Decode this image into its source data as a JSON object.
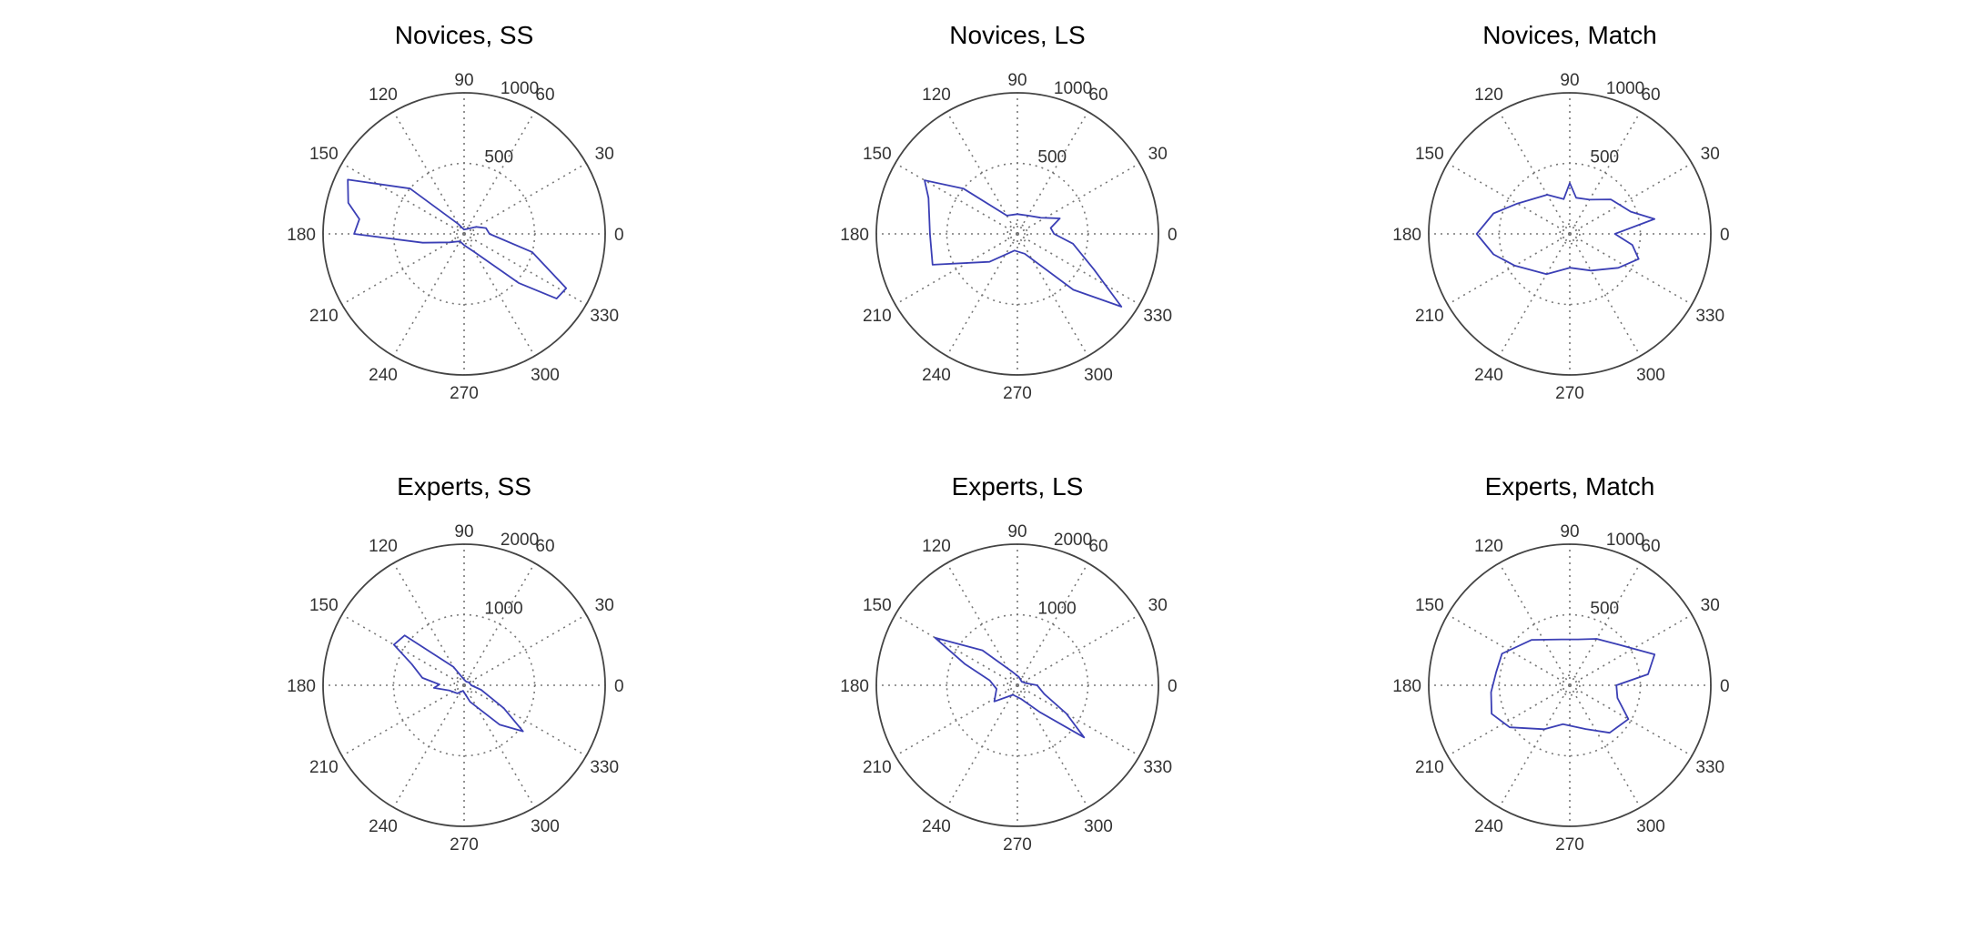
{
  "chart_data": [
    {
      "type": "polar",
      "title": "Novices, SS",
      "rmax": 1000,
      "r_ticks": [
        {
          "value": 500,
          "label": "500"
        },
        {
          "value": 1000,
          "label": "1000"
        }
      ],
      "angle_ticks": [
        "0",
        "30",
        "60",
        "90",
        "120",
        "150",
        "180",
        "210",
        "240",
        "270",
        "300",
        "330"
      ],
      "grid": true,
      "series_color": "#3b3fb5",
      "points": [
        {
          "theta": 0,
          "r": 180
        },
        {
          "theta": 15,
          "r": 160
        },
        {
          "theta": 30,
          "r": 100
        },
        {
          "theta": 60,
          "r": 40
        },
        {
          "theta": 90,
          "r": 30
        },
        {
          "theta": 120,
          "r": 80
        },
        {
          "theta": 140,
          "r": 500
        },
        {
          "theta": 155,
          "r": 910
        },
        {
          "theta": 165,
          "r": 850
        },
        {
          "theta": 172,
          "r": 750
        },
        {
          "theta": 180,
          "r": 780
        },
        {
          "theta": 192,
          "r": 300
        },
        {
          "theta": 210,
          "r": 120
        },
        {
          "theta": 240,
          "r": 60
        },
        {
          "theta": 270,
          "r": 80
        },
        {
          "theta": 300,
          "r": 150
        },
        {
          "theta": 318,
          "r": 520
        },
        {
          "theta": 325,
          "r": 800
        },
        {
          "theta": 332,
          "r": 820
        },
        {
          "theta": 345,
          "r": 500
        }
      ]
    },
    {
      "type": "polar",
      "title": "Novices, LS",
      "rmax": 1000,
      "r_ticks": [
        {
          "value": 500,
          "label": "500"
        },
        {
          "value": 1000,
          "label": "1000"
        }
      ],
      "angle_ticks": [
        "0",
        "30",
        "60",
        "90",
        "120",
        "150",
        "180",
        "210",
        "240",
        "270",
        "300",
        "330"
      ],
      "grid": true,
      "series_color": "#3b3fb5",
      "points": [
        {
          "theta": 0,
          "r": 260
        },
        {
          "theta": 10,
          "r": 240
        },
        {
          "theta": 20,
          "r": 320
        },
        {
          "theta": 35,
          "r": 200
        },
        {
          "theta": 60,
          "r": 150
        },
        {
          "theta": 90,
          "r": 140
        },
        {
          "theta": 120,
          "r": 150
        },
        {
          "theta": 140,
          "r": 500
        },
        {
          "theta": 150,
          "r": 760
        },
        {
          "theta": 158,
          "r": 680
        },
        {
          "theta": 180,
          "r": 620
        },
        {
          "theta": 200,
          "r": 640
        },
        {
          "theta": 225,
          "r": 280
        },
        {
          "theta": 260,
          "r": 120
        },
        {
          "theta": 290,
          "r": 150
        },
        {
          "theta": 315,
          "r": 560
        },
        {
          "theta": 325,
          "r": 900
        },
        {
          "theta": 335,
          "r": 600
        },
        {
          "theta": 350,
          "r": 400
        }
      ]
    },
    {
      "type": "polar",
      "title": "Novices, Match",
      "rmax": 1000,
      "r_ticks": [
        {
          "value": 500,
          "label": "500"
        },
        {
          "value": 1000,
          "label": "1000"
        }
      ],
      "angle_ticks": [
        "0",
        "30",
        "60",
        "90",
        "120",
        "150",
        "180",
        "210",
        "240",
        "270",
        "300",
        "330"
      ],
      "grid": true,
      "series_color": "#3b3fb5",
      "points": [
        {
          "theta": 0,
          "r": 320
        },
        {
          "theta": 10,
          "r": 610
        },
        {
          "theta": 20,
          "r": 460
        },
        {
          "theta": 40,
          "r": 380
        },
        {
          "theta": 60,
          "r": 280
        },
        {
          "theta": 80,
          "r": 260
        },
        {
          "theta": 90,
          "r": 360
        },
        {
          "theta": 100,
          "r": 250
        },
        {
          "theta": 120,
          "r": 320
        },
        {
          "theta": 150,
          "r": 430
        },
        {
          "theta": 165,
          "r": 560
        },
        {
          "theta": 180,
          "r": 660
        },
        {
          "theta": 195,
          "r": 560
        },
        {
          "theta": 210,
          "r": 450
        },
        {
          "theta": 240,
          "r": 330
        },
        {
          "theta": 270,
          "r": 240
        },
        {
          "theta": 300,
          "r": 300
        },
        {
          "theta": 325,
          "r": 420
        },
        {
          "theta": 340,
          "r": 520
        },
        {
          "theta": 350,
          "r": 450
        }
      ]
    },
    {
      "type": "polar",
      "title": "Experts, SS",
      "rmax": 2000,
      "r_ticks": [
        {
          "value": 1000,
          "label": "1000"
        },
        {
          "value": 2000,
          "label": "2000"
        }
      ],
      "angle_ticks": [
        "0",
        "30",
        "60",
        "90",
        "120",
        "150",
        "180",
        "210",
        "240",
        "270",
        "300",
        "330"
      ],
      "grid": true,
      "series_color": "#3b3fb5",
      "points": [
        {
          "theta": 0,
          "r": 100
        },
        {
          "theta": 30,
          "r": 80
        },
        {
          "theta": 60,
          "r": 60
        },
        {
          "theta": 90,
          "r": 80
        },
        {
          "theta": 120,
          "r": 300
        },
        {
          "theta": 140,
          "r": 1100
        },
        {
          "theta": 150,
          "r": 1150
        },
        {
          "theta": 158,
          "r": 800
        },
        {
          "theta": 170,
          "r": 600
        },
        {
          "theta": 178,
          "r": 350
        },
        {
          "theta": 185,
          "r": 430
        },
        {
          "theta": 200,
          "r": 220
        },
        {
          "theta": 230,
          "r": 150
        },
        {
          "theta": 260,
          "r": 80
        },
        {
          "theta": 290,
          "r": 250
        },
        {
          "theta": 312,
          "r": 750
        },
        {
          "theta": 322,
          "r": 1060
        },
        {
          "theta": 330,
          "r": 650
        },
        {
          "theta": 345,
          "r": 250
        }
      ]
    },
    {
      "type": "polar",
      "title": "Experts, LS",
      "rmax": 2000,
      "r_ticks": [
        {
          "value": 1000,
          "label": "1000"
        },
        {
          "value": 2000,
          "label": "2000"
        }
      ],
      "angle_ticks": [
        "0",
        "30",
        "60",
        "90",
        "120",
        "150",
        "180",
        "210",
        "240",
        "270",
        "300",
        "330"
      ],
      "grid": true,
      "series_color": "#3b3fb5",
      "points": [
        {
          "theta": 0,
          "r": 280
        },
        {
          "theta": 15,
          "r": 120
        },
        {
          "theta": 40,
          "r": 80
        },
        {
          "theta": 80,
          "r": 120
        },
        {
          "theta": 110,
          "r": 200
        },
        {
          "theta": 135,
          "r": 700
        },
        {
          "theta": 150,
          "r": 1350
        },
        {
          "theta": 158,
          "r": 800
        },
        {
          "theta": 170,
          "r": 400
        },
        {
          "theta": 190,
          "r": 300
        },
        {
          "theta": 215,
          "r": 400
        },
        {
          "theta": 245,
          "r": 150
        },
        {
          "theta": 285,
          "r": 200
        },
        {
          "theta": 310,
          "r": 500
        },
        {
          "theta": 322,
          "r": 1200
        },
        {
          "theta": 330,
          "r": 800
        },
        {
          "theta": 342,
          "r": 400
        }
      ]
    },
    {
      "type": "polar",
      "title": "Experts, Match",
      "rmax": 1000,
      "r_ticks": [
        {
          "value": 500,
          "label": "500"
        },
        {
          "value": 1000,
          "label": "1000"
        }
      ],
      "angle_ticks": [
        "0",
        "30",
        "60",
        "90",
        "120",
        "150",
        "180",
        "210",
        "240",
        "270",
        "300",
        "330"
      ],
      "grid": true,
      "series_color": "#3b3fb5",
      "points": [
        {
          "theta": 0,
          "r": 330
        },
        {
          "theta": 8,
          "r": 560
        },
        {
          "theta": 20,
          "r": 640
        },
        {
          "theta": 40,
          "r": 450
        },
        {
          "theta": 60,
          "r": 380
        },
        {
          "theta": 80,
          "r": 330
        },
        {
          "theta": 100,
          "r": 330
        },
        {
          "theta": 130,
          "r": 420
        },
        {
          "theta": 155,
          "r": 530
        },
        {
          "theta": 170,
          "r": 530
        },
        {
          "theta": 185,
          "r": 560
        },
        {
          "theta": 200,
          "r": 590
        },
        {
          "theta": 215,
          "r": 520
        },
        {
          "theta": 240,
          "r": 360
        },
        {
          "theta": 260,
          "r": 280
        },
        {
          "theta": 290,
          "r": 330
        },
        {
          "theta": 310,
          "r": 440
        },
        {
          "theta": 330,
          "r": 480
        },
        {
          "theta": 345,
          "r": 350
        }
      ]
    }
  ]
}
